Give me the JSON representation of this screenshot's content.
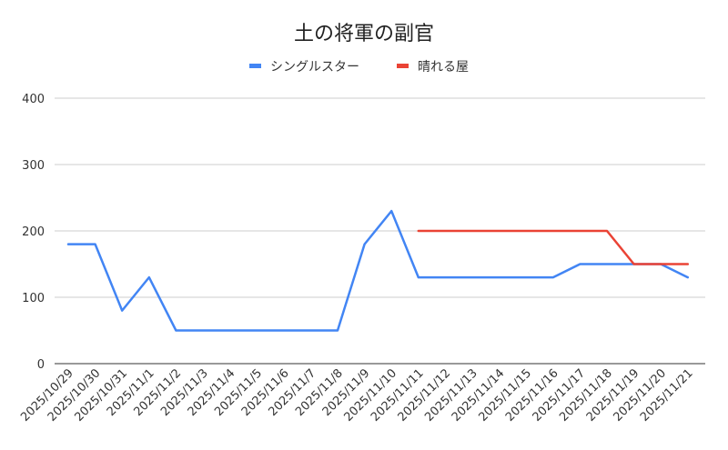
{
  "chart_data": {
    "type": "line",
    "title": "土の将軍の副官",
    "xlabel": "",
    "ylabel": "",
    "ylim": [
      0,
      400
    ],
    "yticks": [
      0,
      100,
      200,
      300,
      400
    ],
    "grid": true,
    "legend_position": "top",
    "categories": [
      "2025/10/29",
      "2025/10/30",
      "2025/10/31",
      "2025/11/1",
      "2025/11/2",
      "2025/11/3",
      "2025/11/4",
      "2025/11/5",
      "2025/11/6",
      "2025/11/7",
      "2025/11/8",
      "2025/11/9",
      "2025/11/10",
      "2025/11/11",
      "2025/11/12",
      "2025/11/13",
      "2025/11/14",
      "2025/11/15",
      "2025/11/16",
      "2025/11/17",
      "2025/11/18",
      "2025/11/19",
      "2025/11/20",
      "2025/11/21"
    ],
    "series": [
      {
        "name": "シングルスター",
        "color": "#4285f4",
        "values": [
          180,
          180,
          80,
          130,
          50,
          50,
          50,
          50,
          50,
          50,
          50,
          180,
          230,
          130,
          130,
          130,
          130,
          130,
          130,
          150,
          150,
          150,
          150,
          130
        ]
      },
      {
        "name": "晴れる屋",
        "color": "#ea4335",
        "values": [
          null,
          null,
          null,
          null,
          null,
          null,
          null,
          null,
          null,
          null,
          null,
          null,
          null,
          200,
          200,
          200,
          200,
          200,
          200,
          200,
          200,
          150,
          150,
          150
        ]
      }
    ]
  }
}
